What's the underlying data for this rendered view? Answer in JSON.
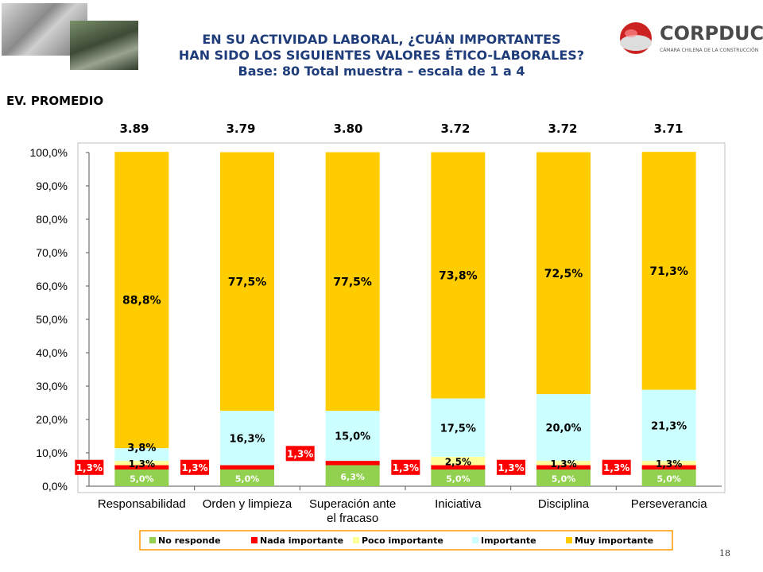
{
  "header": {
    "title_line1": "EN SU ACTIVIDAD LABORAL, ¿CUÁN IMPORTANTES",
    "title_line2": "HAN SIDO LOS SIGUIENTES VALORES ÉTICO-LABORALES?",
    "title_line3": "Base:  80  Total muestra – escala de 1 a 4"
  },
  "logo": {
    "word": "CORPDUC",
    "subtitle": "CÁMARA CHILENA DE LA CONSTRUCCIÓN"
  },
  "section_label": "EV. PROMEDIO",
  "averages": [
    "3.89",
    "3.79",
    "3.80",
    "3.72",
    "3.72",
    "3.71"
  ],
  "page_number": "18",
  "colors": {
    "no_responde": "#92d050",
    "nada_importante": "#ff0000",
    "poco_importante": "#ffff99",
    "importante": "#ccffff",
    "muy_importante": "#ffcc00",
    "title": "#1f3d7a"
  },
  "chart_data": {
    "type": "bar",
    "stacked": true,
    "categories": [
      "Responsabilidad",
      "Orden y limpieza",
      "Superación ante el fracaso",
      "Iniciativa",
      "Disciplina",
      "Perseverancia"
    ],
    "category_lines": [
      [
        "Responsabilidad"
      ],
      [
        "Orden y limpieza"
      ],
      [
        "Superación ante",
        "el fracaso"
      ],
      [
        "Iniciativa"
      ],
      [
        "Disciplina"
      ],
      [
        "Perseverancia"
      ]
    ],
    "ylim": [
      0,
      100
    ],
    "y_ticks": [
      "0,0%",
      "10,0%",
      "20,0%",
      "30,0%",
      "40,0%",
      "50,0%",
      "60,0%",
      "70,0%",
      "80,0%",
      "90,0%",
      "100,0%"
    ],
    "grid": false,
    "legend_position": "bottom",
    "series": [
      {
        "name": "No responde",
        "values": [
          5.0,
          5.0,
          6.3,
          5.0,
          5.0,
          5.0
        ],
        "labels": [
          "5,0%",
          "5,0%",
          "6,3%",
          "5,0%",
          "5,0%",
          "5,0%"
        ]
      },
      {
        "name": "Nada importante",
        "values": [
          1.3,
          1.3,
          1.3,
          1.3,
          1.3,
          1.3
        ],
        "labels": [
          "1,3%",
          "1,3%",
          "1,3%",
          "1,3%",
          "1,3%",
          "1,3%"
        ]
      },
      {
        "name": "Poco importante",
        "values": [
          1.3,
          0,
          0,
          2.5,
          1.3,
          1.3
        ],
        "labels": [
          "1,3%",
          "",
          "",
          "2,5%",
          "1,3%",
          "1,3%"
        ]
      },
      {
        "name": "Importante",
        "values": [
          3.8,
          16.3,
          15.0,
          17.5,
          20.0,
          21.3
        ],
        "labels": [
          "3,8%",
          "16,3%",
          "15,0%",
          "17,5%",
          "20,0%",
          "21,3%"
        ]
      },
      {
        "name": "Muy importante",
        "values": [
          88.8,
          77.5,
          77.5,
          73.8,
          72.5,
          71.3
        ],
        "labels": [
          "88,8%",
          "77,5%",
          "77,5%",
          "73,8%",
          "72,5%",
          "71,3%"
        ]
      }
    ]
  }
}
